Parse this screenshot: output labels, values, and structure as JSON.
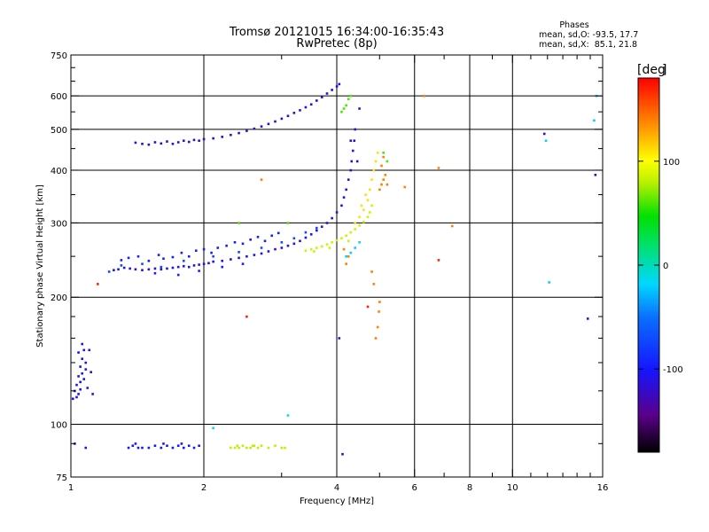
{
  "chart_data": {
    "type": "scatter",
    "title": "Tromsø 20121015 16:34:00-16:35:43",
    "subtitle": "RwPretec (8p)",
    "stats": {
      "heading": "Phases",
      "line1": "mean, sd,O: -93.5, 17.7",
      "line2": "mean, sd,X:  85.1, 21.8"
    },
    "xlabel": "Frequency [MHz]",
    "ylabel": "Stationary phase Virtual Height [km]",
    "x_scale": "log",
    "y_scale": "log",
    "xlim": [
      1,
      16
    ],
    "ylim": [
      75,
      750
    ],
    "x_ticks": [
      {
        "value": 1,
        "label": "1"
      },
      {
        "value": 2,
        "label": "2"
      },
      {
        "value": 4,
        "label": "4"
      },
      {
        "value": 6,
        "label": "6"
      },
      {
        "value": 8,
        "label": "8"
      },
      {
        "value": 10,
        "label": "10"
      },
      {
        "value": 16,
        "label": "16"
      }
    ],
    "x_gridlines": [
      2,
      4,
      6,
      8,
      10
    ],
    "x_minor_ticks": [
      3,
      5,
      7,
      9,
      11,
      12,
      13,
      14,
      15
    ],
    "y_ticks": [
      {
        "value": 75,
        "label": "75"
      },
      {
        "value": 100,
        "label": "100"
      },
      {
        "value": 200,
        "label": "200"
      },
      {
        "value": 300,
        "label": "300"
      },
      {
        "value": 400,
        "label": "400"
      },
      {
        "value": 500,
        "label": "500"
      },
      {
        "value": 600,
        "label": "600"
      },
      {
        "value": 750,
        "label": "750"
      }
    ],
    "y_gridlines": [
      100,
      200,
      300,
      400,
      500,
      600
    ],
    "y_minor_ticks": [
      90,
      120,
      140,
      160,
      180,
      250,
      350,
      450,
      550,
      650,
      700
    ],
    "grid": true,
    "colorbar": {
      "label": "[deg",
      "range": [
        -180,
        180
      ],
      "ticks": [
        {
          "value": 100,
          "label": "100"
        },
        {
          "value": 0,
          "label": "0"
        },
        {
          "value": -100,
          "label": "-100"
        }
      ]
    },
    "point_groups": [
      {
        "phase": -105,
        "points": [
          [
            1.02,
            120
          ],
          [
            1.03,
            124
          ],
          [
            1.04,
            130
          ],
          [
            1.05,
            137
          ],
          [
            1.06,
            143
          ],
          [
            1.07,
            150
          ],
          [
            1.04,
            118
          ],
          [
            1.05,
            126
          ],
          [
            1.06,
            132
          ],
          [
            1.08,
            140
          ],
          [
            1.03,
            116
          ],
          [
            1.07,
            128
          ],
          [
            1.06,
            155
          ],
          [
            1.09,
            122
          ],
          [
            1.12,
            118
          ],
          [
            1.02,
            90
          ],
          [
            1.08,
            88
          ],
          [
            1.01,
            115
          ],
          [
            1.05,
            121
          ],
          [
            1.1,
            150
          ],
          [
            1.11,
            133
          ],
          [
            1.04,
            148
          ],
          [
            1.08,
            135
          ]
        ]
      },
      {
        "phase": -100,
        "points": [
          [
            1.35,
            88
          ],
          [
            1.38,
            89
          ],
          [
            1.42,
            88
          ],
          [
            1.45,
            88
          ],
          [
            1.5,
            88
          ],
          [
            1.55,
            89
          ],
          [
            1.6,
            88
          ],
          [
            1.65,
            89
          ],
          [
            1.7,
            88
          ],
          [
            1.75,
            89
          ],
          [
            1.8,
            88
          ],
          [
            1.85,
            89
          ],
          [
            1.9,
            88
          ],
          [
            1.95,
            89
          ],
          [
            1.4,
            90
          ],
          [
            1.62,
            90
          ],
          [
            1.78,
            90
          ]
        ]
      },
      {
        "phase": 80,
        "points": [
          [
            2.3,
            88
          ],
          [
            2.35,
            88
          ],
          [
            2.4,
            88
          ],
          [
            2.45,
            89
          ],
          [
            2.5,
            88
          ],
          [
            2.55,
            88
          ],
          [
            2.6,
            89
          ],
          [
            2.65,
            88
          ],
          [
            2.7,
            89
          ],
          [
            2.8,
            88
          ],
          [
            2.9,
            89
          ],
          [
            3.0,
            88
          ],
          [
            3.05,
            88
          ],
          [
            2.38,
            89
          ],
          [
            2.58,
            89
          ]
        ]
      },
      {
        "phase": -110,
        "points": [
          [
            1.25,
            232
          ],
          [
            1.28,
            233
          ],
          [
            1.32,
            235
          ],
          [
            1.36,
            234
          ],
          [
            1.4,
            233
          ],
          [
            1.45,
            232
          ],
          [
            1.5,
            233
          ],
          [
            1.55,
            234
          ],
          [
            1.6,
            233
          ],
          [
            1.65,
            234
          ],
          [
            1.7,
            235
          ],
          [
            1.75,
            236
          ],
          [
            1.8,
            237
          ],
          [
            1.85,
            236
          ],
          [
            1.9,
            238
          ],
          [
            1.95,
            239
          ],
          [
            2.0,
            240
          ],
          [
            2.05,
            241
          ],
          [
            2.1,
            243
          ],
          [
            2.2,
            244
          ],
          [
            2.3,
            246
          ],
          [
            2.4,
            248
          ],
          [
            2.5,
            250
          ],
          [
            2.6,
            252
          ],
          [
            2.7,
            254
          ],
          [
            2.8,
            257
          ],
          [
            2.9,
            260
          ],
          [
            3.0,
            262
          ],
          [
            3.1,
            265
          ],
          [
            3.2,
            268
          ],
          [
            3.3,
            272
          ],
          [
            3.4,
            277
          ],
          [
            3.5,
            282
          ],
          [
            3.6,
            288
          ],
          [
            3.7,
            294
          ],
          [
            3.8,
            300
          ],
          [
            3.9,
            308
          ],
          [
            4.0,
            318
          ],
          [
            4.1,
            330
          ],
          [
            4.15,
            345
          ],
          [
            4.2,
            360
          ],
          [
            4.25,
            380
          ],
          [
            4.3,
            400
          ],
          [
            4.32,
            420
          ],
          [
            4.35,
            445
          ],
          [
            4.38,
            470
          ],
          [
            4.4,
            500
          ]
        ]
      },
      {
        "phase": -95,
        "points": [
          [
            1.3,
            245
          ],
          [
            1.35,
            248
          ],
          [
            1.42,
            250
          ],
          [
            1.5,
            244
          ],
          [
            1.58,
            252
          ],
          [
            1.62,
            247
          ],
          [
            1.7,
            249
          ],
          [
            1.78,
            255
          ],
          [
            1.85,
            250
          ],
          [
            1.92,
            258
          ],
          [
            2.0,
            260
          ],
          [
            2.08,
            255
          ],
          [
            2.15,
            262
          ],
          [
            2.25,
            265
          ],
          [
            2.35,
            270
          ],
          [
            2.45,
            268
          ],
          [
            2.55,
            274
          ],
          [
            2.65,
            278
          ],
          [
            2.75,
            272
          ],
          [
            2.85,
            280
          ],
          [
            2.95,
            284
          ],
          [
            1.55,
            228
          ],
          [
            1.75,
            226
          ],
          [
            1.95,
            231
          ],
          [
            2.2,
            236
          ],
          [
            2.45,
            240
          ]
        ]
      },
      {
        "phase": -70,
        "points": [
          [
            1.22,
            230
          ],
          [
            1.3,
            238
          ],
          [
            1.45,
            240
          ],
          [
            1.6,
            236
          ],
          [
            1.8,
            244
          ],
          [
            2.1,
            250
          ],
          [
            2.4,
            256
          ],
          [
            2.7,
            262
          ],
          [
            3.0,
            270
          ],
          [
            3.2,
            276
          ],
          [
            3.4,
            285
          ],
          [
            3.6,
            292
          ]
        ]
      },
      {
        "phase": -115,
        "points": [
          [
            1.4,
            465
          ],
          [
            1.45,
            462
          ],
          [
            1.5,
            460
          ],
          [
            1.55,
            466
          ],
          [
            1.6,
            463
          ],
          [
            1.65,
            468
          ],
          [
            1.7,
            462
          ],
          [
            1.75,
            466
          ],
          [
            1.8,
            470
          ],
          [
            1.85,
            467
          ],
          [
            1.9,
            472
          ],
          [
            1.95,
            470
          ],
          [
            2.0,
            474
          ],
          [
            2.1,
            476
          ],
          [
            2.2,
            480
          ],
          [
            2.3,
            485
          ],
          [
            2.4,
            490
          ],
          [
            2.5,
            496
          ],
          [
            2.6,
            502
          ],
          [
            2.7,
            508
          ],
          [
            2.8,
            515
          ],
          [
            2.9,
            522
          ],
          [
            3.0,
            530
          ],
          [
            3.1,
            538
          ],
          [
            3.2,
            547
          ],
          [
            3.3,
            555
          ],
          [
            3.4,
            564
          ],
          [
            3.5,
            573
          ],
          [
            3.6,
            585
          ],
          [
            3.7,
            596
          ],
          [
            3.8,
            608
          ],
          [
            3.9,
            620
          ],
          [
            4.0,
            632
          ],
          [
            4.05,
            640
          ]
        ]
      },
      {
        "phase": 85,
        "points": [
          [
            3.4,
            258
          ],
          [
            3.5,
            260
          ],
          [
            3.6,
            262
          ],
          [
            3.7,
            264
          ],
          [
            3.8,
            267
          ],
          [
            3.9,
            270
          ],
          [
            4.0,
            273
          ],
          [
            4.1,
            276
          ],
          [
            4.2,
            280
          ],
          [
            4.3,
            285
          ],
          [
            4.4,
            290
          ],
          [
            4.5,
            296
          ],
          [
            4.6,
            302
          ],
          [
            4.7,
            310
          ],
          [
            4.75,
            318
          ],
          [
            4.8,
            330
          ],
          [
            3.55,
            257
          ],
          [
            3.85,
            262
          ],
          [
            4.25,
            272
          ]
        ]
      },
      {
        "phase": 110,
        "points": [
          [
            4.4,
            300
          ],
          [
            4.5,
            310
          ],
          [
            4.6,
            322
          ],
          [
            4.7,
            340
          ],
          [
            4.75,
            360
          ],
          [
            4.8,
            380
          ],
          [
            4.85,
            400
          ],
          [
            4.9,
            420
          ],
          [
            4.95,
            440
          ],
          [
            4.65,
            350
          ],
          [
            4.55,
            330
          ]
        ]
      },
      {
        "phase": 140,
        "points": [
          [
            5.0,
            360
          ],
          [
            5.05,
            370
          ],
          [
            5.1,
            380
          ],
          [
            5.15,
            390
          ],
          [
            5.2,
            370
          ],
          [
            5.05,
            410
          ],
          [
            5.1,
            430
          ],
          [
            4.9,
            160
          ],
          [
            4.95,
            170
          ],
          [
            4.98,
            185
          ],
          [
            5.0,
            195
          ],
          [
            4.85,
            215
          ],
          [
            4.8,
            230
          ],
          [
            4.15,
            260
          ],
          [
            4.25,
            250
          ],
          [
            4.2,
            240
          ],
          [
            2.7,
            380
          ],
          [
            5.7,
            365
          ],
          [
            6.3,
            600
          ],
          [
            6.8,
            405
          ],
          [
            7.3,
            295
          ]
        ]
      },
      {
        "phase": 60,
        "points": [
          [
            4.1,
            550
          ],
          [
            4.15,
            560
          ],
          [
            4.2,
            570
          ],
          [
            4.25,
            590
          ],
          [
            4.3,
            600
          ],
          [
            5.1,
            440
          ],
          [
            5.2,
            420
          ],
          [
            2.4,
            300
          ],
          [
            3.1,
            300
          ]
        ]
      },
      {
        "phase": -20,
        "points": [
          [
            4.2,
            250
          ],
          [
            4.3,
            255
          ],
          [
            4.4,
            262
          ],
          [
            4.5,
            270
          ],
          [
            2.1,
            98
          ],
          [
            3.1,
            105
          ],
          [
            11.9,
            470
          ],
          [
            12.1,
            217
          ],
          [
            15.3,
            525
          ],
          [
            15.5,
            600
          ]
        ]
      },
      {
        "phase": -120,
        "points": [
          [
            4.05,
            160
          ],
          [
            4.12,
            85
          ],
          [
            14.8,
            178
          ],
          [
            11.8,
            488
          ],
          [
            15.4,
            390
          ],
          [
            4.3,
            470
          ],
          [
            4.45,
            420
          ],
          [
            4.5,
            560
          ]
        ]
      },
      {
        "phase": 170,
        "points": [
          [
            4.7,
            190
          ],
          [
            6.8,
            245
          ],
          [
            2.5,
            180
          ],
          [
            1.15,
            215
          ]
        ]
      }
    ]
  }
}
